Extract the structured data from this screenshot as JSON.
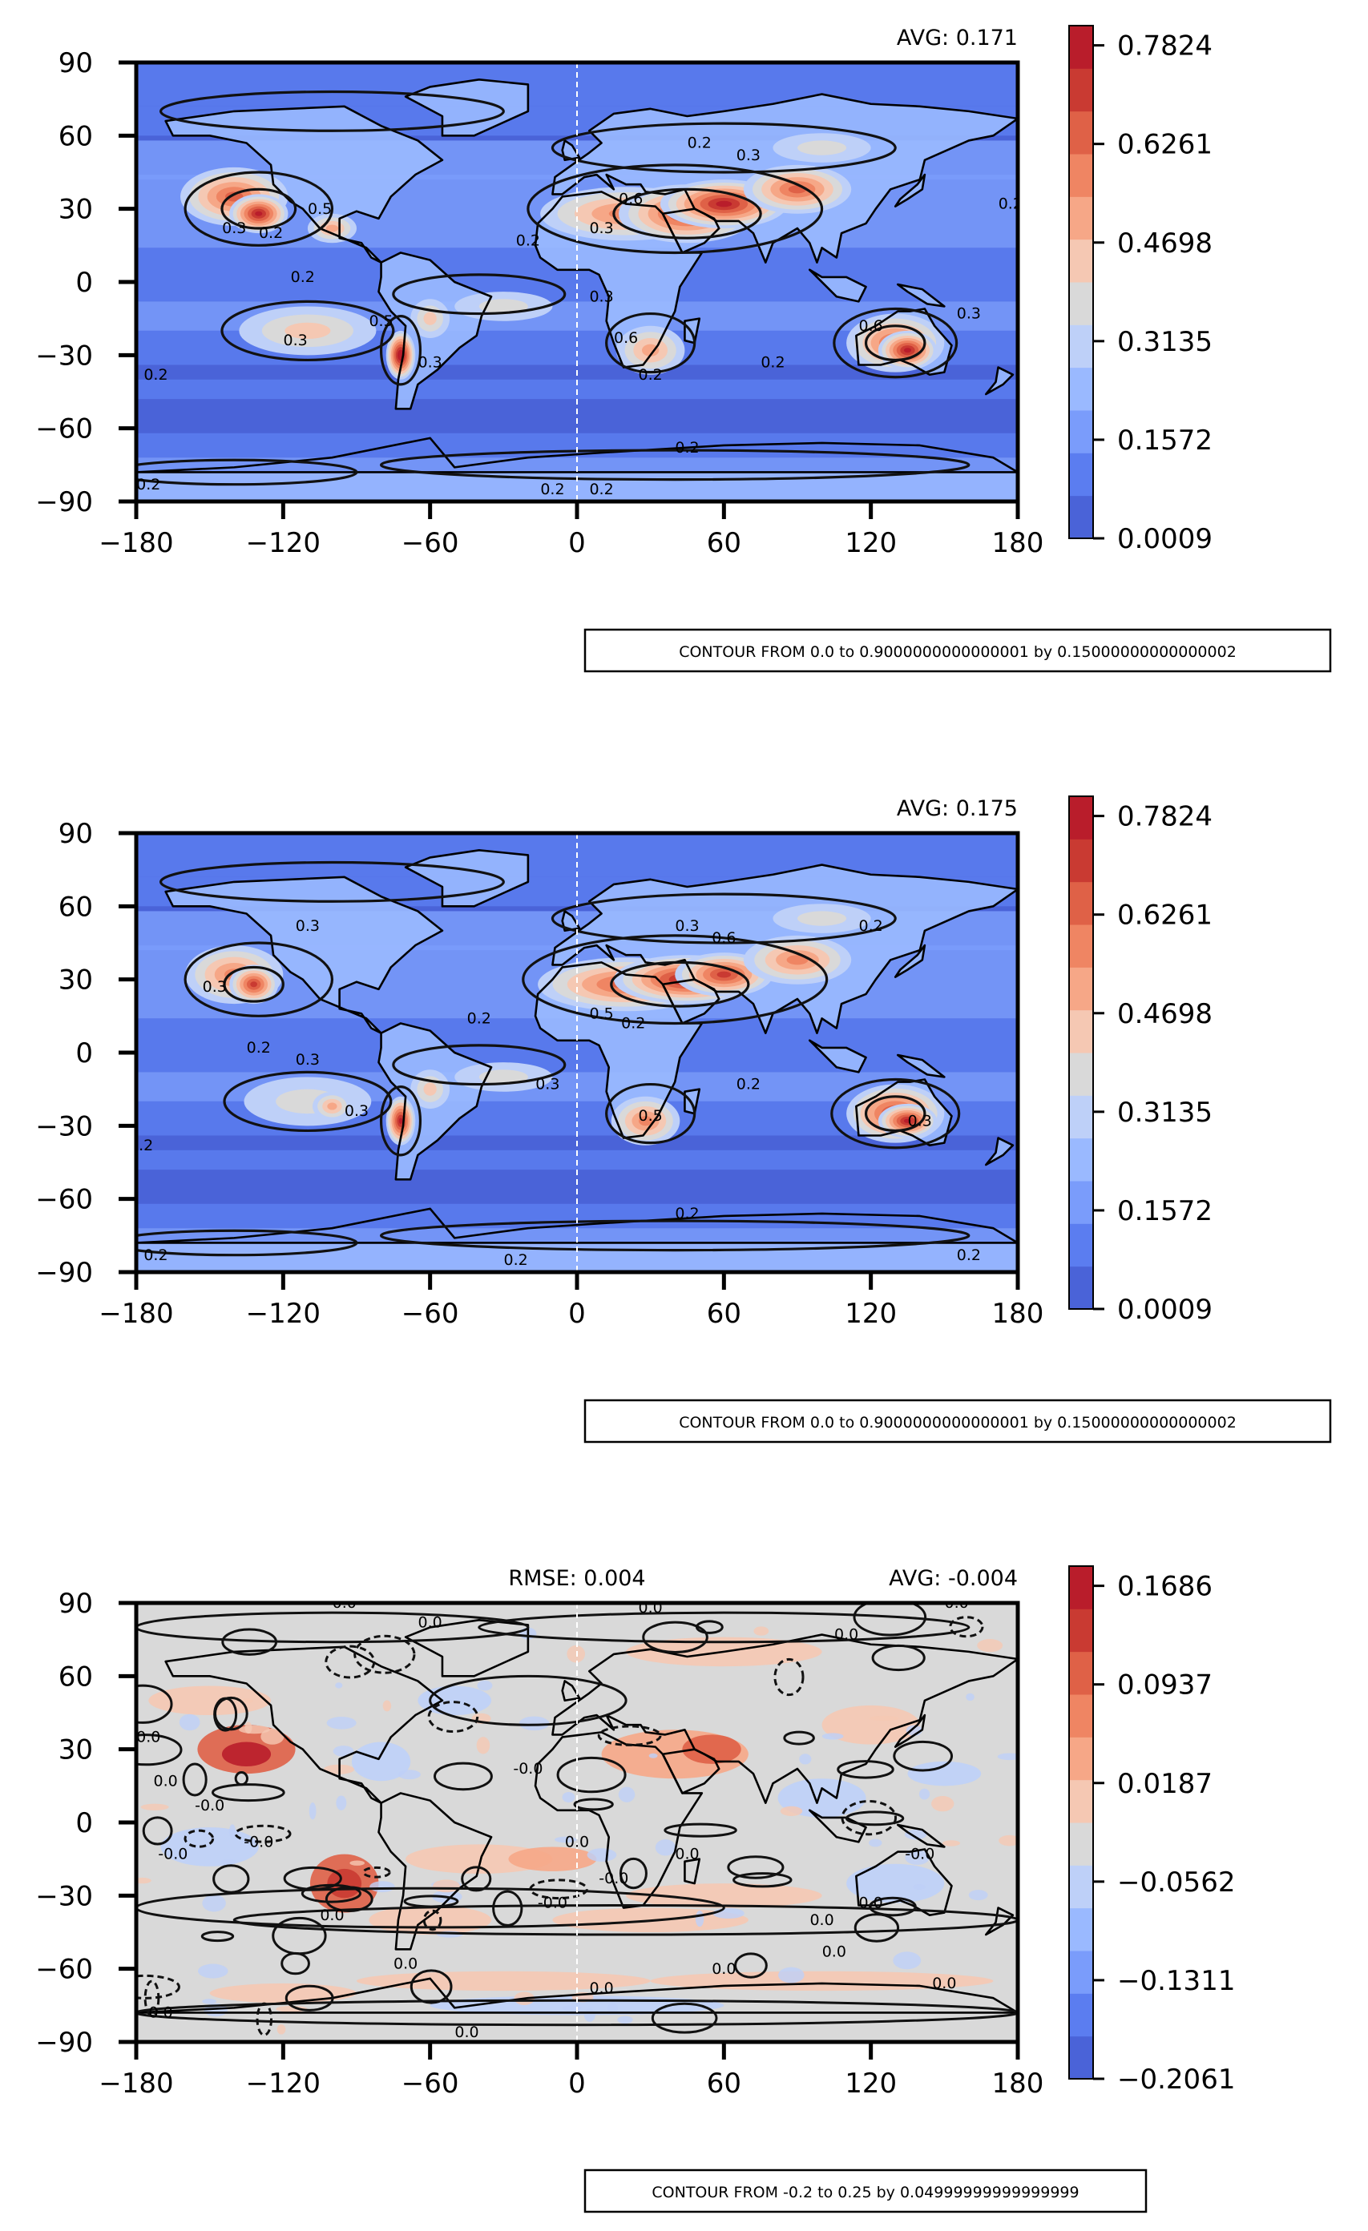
{
  "chart_data": [
    {
      "type": "heatmap",
      "title": "",
      "stats": {
        "avg": "AVG: 0.171"
      },
      "x_ticks": [
        "−180",
        "−120",
        "−60",
        "0",
        "60",
        "120",
        "180"
      ],
      "y_ticks": [
        "90",
        "60",
        "30",
        "0",
        "−30",
        "−60",
        "−90"
      ],
      "xlim": [
        -180,
        180
      ],
      "ylim": [
        -90,
        90
      ],
      "colorbar": {
        "levels": 12,
        "tick_labels": [
          "0.0009",
          "0.1572",
          "0.3135",
          "0.4698",
          "0.6261",
          "0.7824"
        ],
        "colors": [
          "#4a63d8",
          "#5b7df0",
          "#7a9cfb",
          "#9ab9ff",
          "#bed0f8",
          "#d9d9d9",
          "#f5c8b3",
          "#f6a787",
          "#ef8563",
          "#df6147",
          "#c93a32",
          "#b91d2b"
        ]
      },
      "contour_labels": [
        "0.2",
        "0.3",
        "0.5",
        "0.6"
      ],
      "contour_note": "CONTOUR FROM 0.0 to 0.9000000000000001 by 0.15000000000000002"
    },
    {
      "type": "heatmap",
      "title": "",
      "stats": {
        "avg": "AVG: 0.175"
      },
      "x_ticks": [
        "−180",
        "−120",
        "−60",
        "0",
        "60",
        "120",
        "180"
      ],
      "y_ticks": [
        "90",
        "60",
        "30",
        "0",
        "−30",
        "−60",
        "−90"
      ],
      "xlim": [
        -180,
        180
      ],
      "ylim": [
        -90,
        90
      ],
      "colorbar": {
        "levels": 12,
        "tick_labels": [
          "0.0009",
          "0.1572",
          "0.3135",
          "0.4698",
          "0.6261",
          "0.7824"
        ],
        "colors": [
          "#4a63d8",
          "#5b7df0",
          "#7a9cfb",
          "#9ab9ff",
          "#bed0f8",
          "#d9d9d9",
          "#f5c8b3",
          "#f6a787",
          "#ef8563",
          "#df6147",
          "#c93a32",
          "#b91d2b"
        ]
      },
      "contour_labels": [
        "0.2",
        "0.3",
        "0.5",
        "0.6"
      ],
      "contour_note": "CONTOUR FROM 0.0 to 0.9000000000000001 by 0.15000000000000002"
    },
    {
      "type": "heatmap",
      "title": "",
      "stats": {
        "rmse": "RMSE: 0.004",
        "avg": "AVG: -0.004"
      },
      "x_ticks": [
        "−180",
        "−120",
        "−60",
        "0",
        "60",
        "120",
        "180"
      ],
      "y_ticks": [
        "90",
        "60",
        "30",
        "0",
        "−30",
        "−60",
        "−90"
      ],
      "xlim": [
        -180,
        180
      ],
      "ylim": [
        -90,
        90
      ],
      "colorbar": {
        "levels": 12,
        "tick_labels": [
          "−0.2061",
          "−0.1311",
          "−0.0562",
          "0.0187",
          "0.0937",
          "0.1686"
        ],
        "colors": [
          "#4a63d8",
          "#5b7df0",
          "#7a9cfb",
          "#9ab9ff",
          "#bed0f8",
          "#d9d9d9",
          "#f5c8b3",
          "#f6a787",
          "#ef8563",
          "#df6147",
          "#c93a32",
          "#b91d2b"
        ]
      },
      "contour_labels": [
        "0.0",
        "-0.0"
      ],
      "contour_note": "CONTOUR FROM -0.2 to 0.25 by 0.04999999999999999"
    }
  ]
}
